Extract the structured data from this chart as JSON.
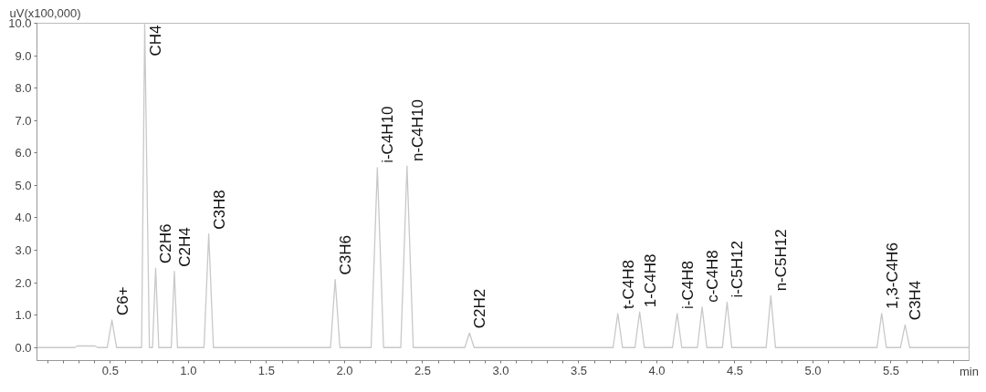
{
  "chart_data": {
    "type": "line",
    "xlabel": "min",
    "ylabel": "uV(x100,000)",
    "x": [
      0.03,
      0.27,
      0.29,
      0.4,
      0.42,
      0.48,
      0.51,
      0.54,
      0.7,
      0.72,
      0.75,
      0.77,
      0.79,
      0.81,
      0.89,
      0.91,
      0.93,
      1.1,
      1.13,
      1.16,
      1.91,
      1.94,
      1.97,
      2.17,
      2.21,
      2.25,
      2.36,
      2.4,
      2.44,
      2.77,
      2.8,
      2.83,
      3.72,
      3.75,
      3.78,
      3.86,
      3.89,
      3.92,
      4.1,
      4.13,
      4.16,
      4.26,
      4.29,
      4.32,
      4.42,
      4.45,
      4.48,
      4.7,
      4.73,
      4.76,
      5.41,
      5.44,
      5.47,
      5.56,
      5.59,
      5.62,
      6.0
    ],
    "series": [
      {
        "color": "#c8c8c8",
        "values": [
          0,
          0,
          0.05,
          0.05,
          0,
          0,
          0.85,
          0,
          0,
          10.0,
          0,
          0,
          2.45,
          0,
          0,
          2.35,
          0,
          0,
          3.5,
          0,
          0,
          2.1,
          0,
          0,
          5.55,
          0,
          0,
          5.6,
          0,
          0,
          0.45,
          0,
          0,
          1.05,
          0,
          0,
          1.1,
          0,
          0,
          1.05,
          0,
          0,
          1.25,
          0,
          0,
          1.4,
          0,
          0,
          1.6,
          0,
          0,
          1.05,
          0,
          0,
          0.7,
          0,
          0
        ]
      }
    ],
    "xlim": [
      0.03,
      6.0
    ],
    "ylim": [
      -0.4,
      10.0
    ],
    "xticks": [
      {
        "value": 0.1,
        "label": null
      },
      {
        "value": 0.2,
        "label": null
      },
      {
        "value": 0.3,
        "label": null
      },
      {
        "value": 0.4,
        "label": null
      },
      {
        "value": 0.5,
        "label": "0.5"
      },
      {
        "value": 0.6,
        "label": null
      },
      {
        "value": 0.7,
        "label": null
      },
      {
        "value": 0.8,
        "label": null
      },
      {
        "value": 0.9,
        "label": null
      },
      {
        "value": 1.0,
        "label": "1.0"
      },
      {
        "value": 1.1,
        "label": null
      },
      {
        "value": 1.2,
        "label": null
      },
      {
        "value": 1.3,
        "label": null
      },
      {
        "value": 1.4,
        "label": null
      },
      {
        "value": 1.5,
        "label": "1.5"
      },
      {
        "value": 1.6,
        "label": null
      },
      {
        "value": 1.7,
        "label": null
      },
      {
        "value": 1.8,
        "label": null
      },
      {
        "value": 1.9,
        "label": null
      },
      {
        "value": 2.0,
        "label": "2.0"
      },
      {
        "value": 2.1,
        "label": null
      },
      {
        "value": 2.2,
        "label": null
      },
      {
        "value": 2.3,
        "label": null
      },
      {
        "value": 2.4,
        "label": null
      },
      {
        "value": 2.5,
        "label": "2.5"
      },
      {
        "value": 2.6,
        "label": null
      },
      {
        "value": 2.7,
        "label": null
      },
      {
        "value": 2.8,
        "label": null
      },
      {
        "value": 2.9,
        "label": null
      },
      {
        "value": 3.0,
        "label": "3.0"
      },
      {
        "value": 3.1,
        "label": null
      },
      {
        "value": 3.2,
        "label": null
      },
      {
        "value": 3.3,
        "label": null
      },
      {
        "value": 3.4,
        "label": null
      },
      {
        "value": 3.5,
        "label": "3.5"
      },
      {
        "value": 3.6,
        "label": null
      },
      {
        "value": 3.7,
        "label": null
      },
      {
        "value": 3.8,
        "label": null
      },
      {
        "value": 3.9,
        "label": null
      },
      {
        "value": 4.0,
        "label": "4.0"
      },
      {
        "value": 4.1,
        "label": null
      },
      {
        "value": 4.2,
        "label": null
      },
      {
        "value": 4.3,
        "label": null
      },
      {
        "value": 4.4,
        "label": null
      },
      {
        "value": 4.5,
        "label": "4.5"
      },
      {
        "value": 4.6,
        "label": null
      },
      {
        "value": 4.7,
        "label": null
      },
      {
        "value": 4.8,
        "label": null
      },
      {
        "value": 4.9,
        "label": null
      },
      {
        "value": 5.0,
        "label": "5.0"
      },
      {
        "value": 5.1,
        "label": null
      },
      {
        "value": 5.2,
        "label": null
      },
      {
        "value": 5.3,
        "label": null
      },
      {
        "value": 5.4,
        "label": null
      },
      {
        "value": 5.5,
        "label": "5.5"
      },
      {
        "value": 5.6,
        "label": null
      },
      {
        "value": 5.7,
        "label": null
      },
      {
        "value": 5.8,
        "label": null
      },
      {
        "value": 5.9,
        "label": null
      }
    ],
    "yticks": [
      {
        "value": 0,
        "label": "0.0"
      },
      {
        "value": 1,
        "label": "1.0"
      },
      {
        "value": 2,
        "label": "2.0"
      },
      {
        "value": 3,
        "label": "3.0"
      },
      {
        "value": 4,
        "label": "4.0"
      },
      {
        "value": 5,
        "label": "5.0"
      },
      {
        "value": 6,
        "label": "6.0"
      },
      {
        "value": 7,
        "label": "7.0"
      },
      {
        "value": 8,
        "label": "8.0"
      },
      {
        "value": 9,
        "label": "9.0"
      },
      {
        "value": 10,
        "label": "10.0"
      }
    ],
    "grid": false,
    "marker": "none",
    "line_style": "solid",
    "annotations": [
      {
        "text": "C6+",
        "x": 0.51,
        "y": 0.85
      },
      {
        "text": "CH4",
        "x": 0.72,
        "y": 10.0
      },
      {
        "text": "C2H6",
        "x": 0.79,
        "y": 2.45
      },
      {
        "text": "C2H4",
        "x": 0.91,
        "y": 2.35
      },
      {
        "text": "C3H8",
        "x": 1.13,
        "y": 3.5
      },
      {
        "text": "C3H6",
        "x": 1.94,
        "y": 2.1
      },
      {
        "text": "i-C4H10",
        "x": 2.21,
        "y": 5.55
      },
      {
        "text": "n-C4H10",
        "x": 2.4,
        "y": 5.6
      },
      {
        "text": "C2H2",
        "x": 2.8,
        "y": 0.45
      },
      {
        "text": "t-C4H8",
        "x": 3.75,
        "y": 1.05
      },
      {
        "text": "1-C4H8",
        "x": 3.89,
        "y": 1.1
      },
      {
        "text": "i-C4H8",
        "x": 4.13,
        "y": 1.05
      },
      {
        "text": "c-C4H8",
        "x": 4.29,
        "y": 1.25
      },
      {
        "text": "i-C5H12",
        "x": 4.45,
        "y": 1.4
      },
      {
        "text": "n-C5H12",
        "x": 4.73,
        "y": 1.6
      },
      {
        "text": "1,3-C4H6",
        "x": 5.44,
        "y": 1.05
      },
      {
        "text": "C3H4",
        "x": 5.59,
        "y": 0.7
      }
    ]
  }
}
